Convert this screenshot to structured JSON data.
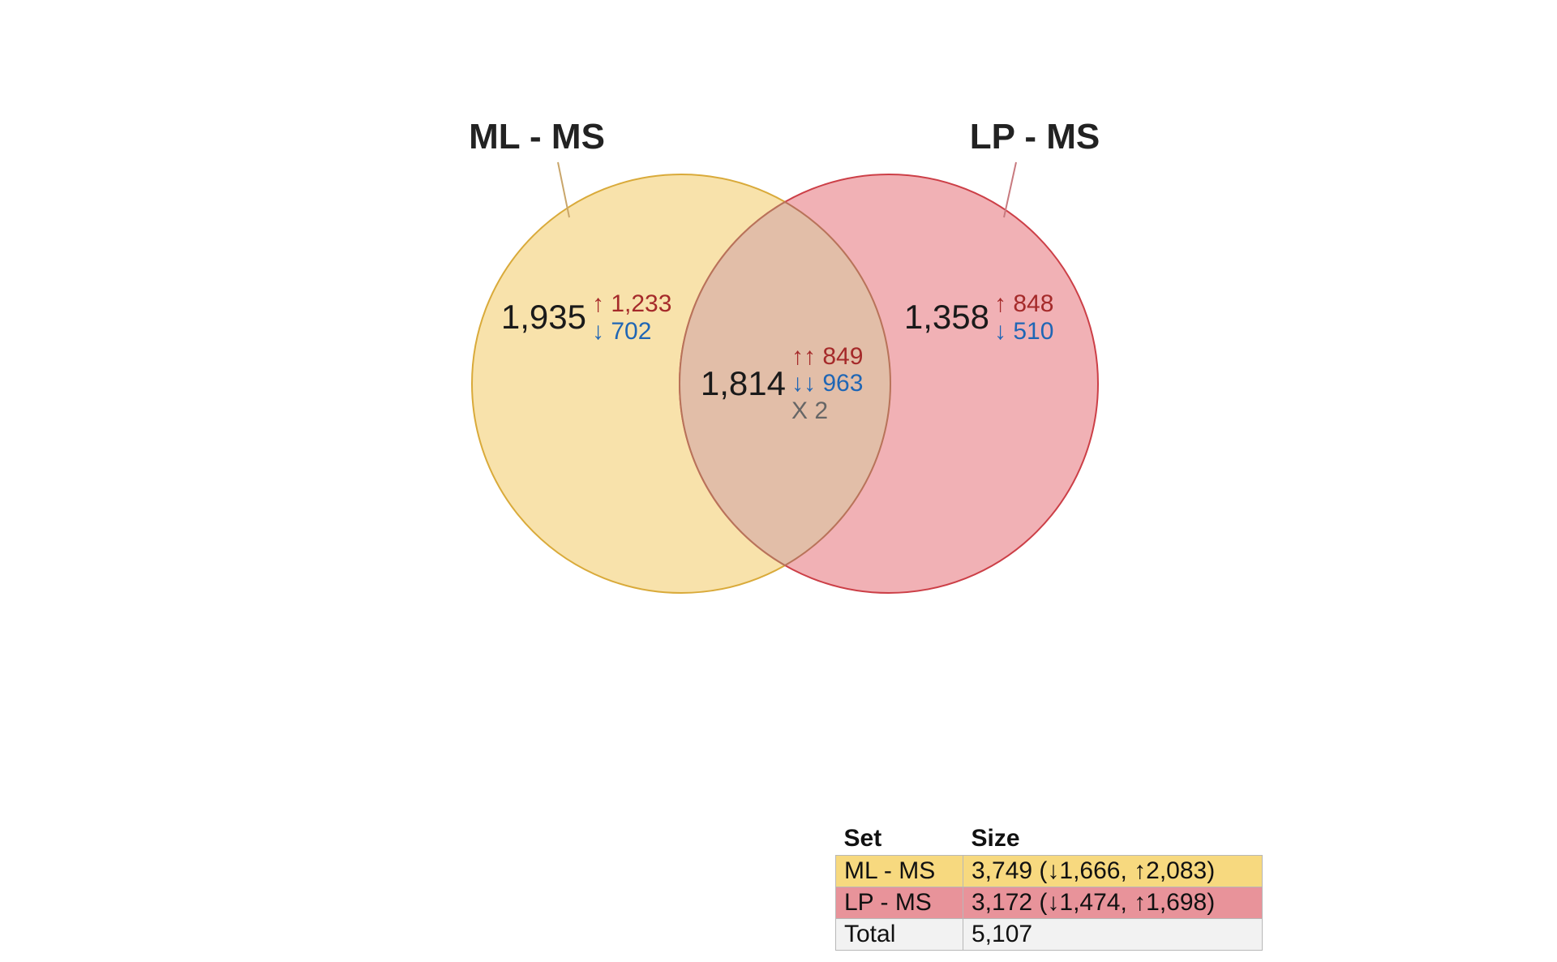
{
  "venn": {
    "sets": [
      {
        "name": "ML - MS",
        "fill": "#f5d78a",
        "stroke": "#d9aa3a",
        "leader": "#c9a66b"
      },
      {
        "name": "LP - MS",
        "fill": "#ee9ea3",
        "stroke": "#cc3f47",
        "leader": "#c87a7f"
      }
    ],
    "regions": {
      "left_only": {
        "total": "1,935",
        "up": "↑ 1,233",
        "down": "↓ 702"
      },
      "right_only": {
        "total": "1,358",
        "up": "↑ 848",
        "down": "↓ 510"
      },
      "intersection": {
        "total": "1,814",
        "up": "↑↑ 849",
        "down": "↓↓ 963",
        "mixed": "X 2"
      }
    }
  },
  "table": {
    "headers": {
      "set": "Set",
      "size": "Size"
    },
    "rows": [
      {
        "set": "ML - MS",
        "size": "3,749 (↓1,666, ↑2,083)"
      },
      {
        "set": "LP - MS",
        "size": "3,172 (↓1,474, ↑1,698)"
      },
      {
        "set": "Total",
        "size": "5,107"
      }
    ],
    "colors": {
      "ml": "#f7d97f",
      "lp": "#e8939a",
      "total": "#f2f2f2"
    }
  }
}
